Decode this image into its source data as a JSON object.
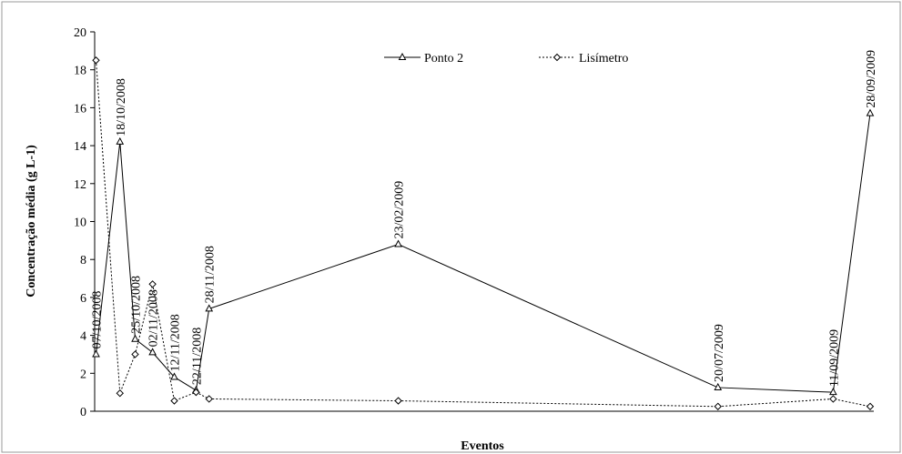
{
  "chart_data": {
    "type": "line",
    "xlabel": "Eventos",
    "ylabel": "Concentração média (g L-1)",
    "ylim": [
      0,
      20
    ],
    "yticks": [
      0,
      2,
      4,
      6,
      8,
      10,
      12,
      14,
      16,
      18,
      20
    ],
    "x": [
      "07/10/2008",
      "18/10/2008",
      "25/10/2008",
      "02/11/2008",
      "12/11/2008",
      "22/11/2008",
      "28/11/2008",
      "23/02/2009",
      "20/07/2009",
      "11/09/2009",
      "28/09/2009"
    ],
    "legend_position": "top-center",
    "grid": false,
    "series": [
      {
        "name": "Ponto 2",
        "style": "solid",
        "marker": "triangle",
        "color": "#000000",
        "points": [
          {
            "date": "07/10/2008",
            "y": 3.0
          },
          {
            "date": "18/10/2008",
            "y": 14.2
          },
          {
            "date": "25/10/2008",
            "y": 3.8
          },
          {
            "date": "02/11/2008",
            "y": 3.1
          },
          {
            "date": "12/11/2008",
            "y": 1.8
          },
          {
            "date": "22/11/2008",
            "y": 1.1
          },
          {
            "date": "28/11/2008",
            "y": 5.4
          },
          {
            "date": "23/02/2009",
            "y": 8.8
          },
          {
            "date": "20/07/2009",
            "y": 1.25
          },
          {
            "date": "11/09/2009",
            "y": 1.0
          },
          {
            "date": "28/09/2009",
            "y": 15.7
          }
        ]
      },
      {
        "name": "Lisímetro",
        "style": "dotted",
        "marker": "diamond",
        "color": "#000000",
        "points": [
          {
            "date": "07/10/2008",
            "y": 18.5
          },
          {
            "date": "18/10/2008",
            "y": 0.95
          },
          {
            "date": "25/10/2008",
            "y": 3.0
          },
          {
            "date": "02/11/2008",
            "y": 6.7
          },
          {
            "date": "12/11/2008",
            "y": 0.55
          },
          {
            "date": "22/11/2008",
            "y": 1.0
          },
          {
            "date": "28/11/2008",
            "y": 0.65
          },
          {
            "date": "23/02/2009",
            "y": 0.55
          },
          {
            "date": "20/07/2009",
            "y": 0.25
          },
          {
            "date": "11/09/2009",
            "y": 0.65
          },
          {
            "date": "28/09/2009",
            "y": 0.25
          }
        ]
      }
    ]
  }
}
